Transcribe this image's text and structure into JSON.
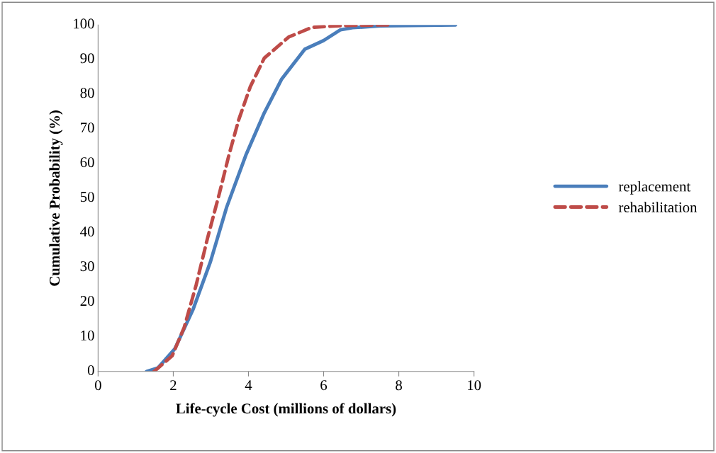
{
  "chart_data": {
    "type": "line",
    "xlabel": "Life-cycle Cost (millions of dollars)",
    "ylabel": "Cumulative Probability (%)",
    "xlim": [
      0,
      10
    ],
    "xticks": [
      0,
      2,
      4,
      6,
      8,
      10
    ],
    "ylim": [
      0,
      100
    ],
    "yticks": [
      0,
      10,
      20,
      30,
      40,
      50,
      60,
      70,
      80,
      90,
      100
    ],
    "grid": false,
    "legend": "right",
    "marker": "none",
    "series": [
      {
        "name": "replacement",
        "color": "#4a7ebb",
        "line_style": "solid",
        "x": [
          1.29,
          1.59,
          2.04,
          2.53,
          2.99,
          3.42,
          3.93,
          4.42,
          4.88,
          5.5,
          6.0,
          6.45,
          6.77,
          7.5,
          9.51
        ],
        "values": [
          0,
          1,
          6.5,
          18,
          31.7,
          47.4,
          62.4,
          74.6,
          84.3,
          93,
          95.5,
          98.6,
          99.2,
          99.7,
          100
        ]
      },
      {
        "name": "rehabilitation",
        "color": "#be4b48",
        "line_style": "dashed",
        "x": [
          1.49,
          1.97,
          2.29,
          2.61,
          2.91,
          3.23,
          3.48,
          3.74,
          4.05,
          4.42,
          5.07,
          5.69,
          6.5,
          7.71
        ],
        "values": [
          0,
          4.5,
          12.7,
          25,
          38.4,
          51.5,
          62.4,
          72.6,
          82.2,
          90.4,
          96.5,
          99.3,
          99.8,
          100
        ]
      }
    ]
  }
}
